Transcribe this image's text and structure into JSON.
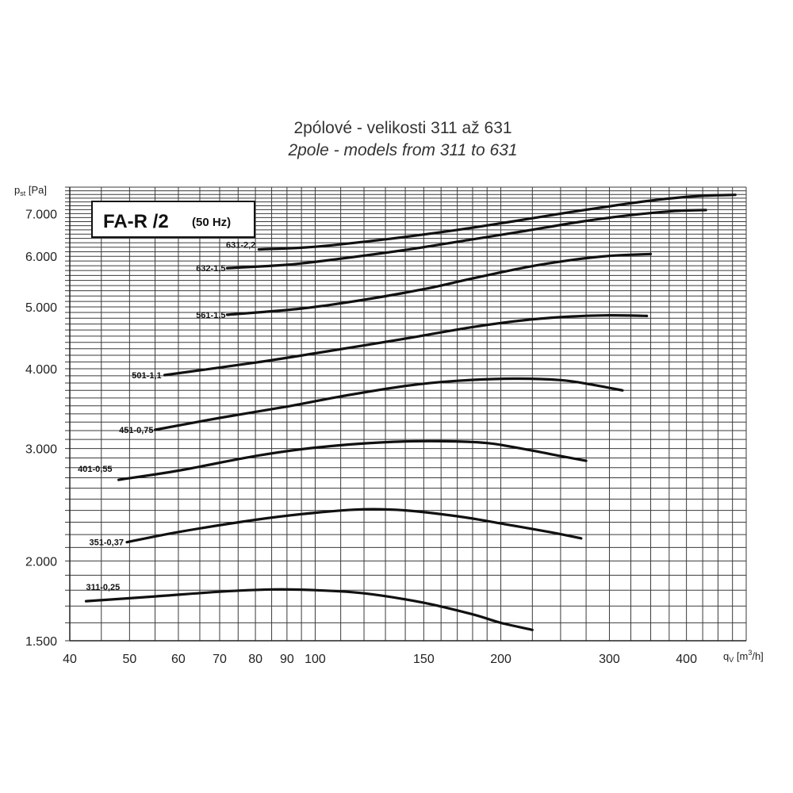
{
  "chart_data": {
    "type": "line",
    "title": "2pólové - velikosti 311 až 631",
    "subtitle": "2pole - models from 311 to 631",
    "model_box": {
      "name": "FA-R /2",
      "frequency": "(50 Hz)"
    },
    "xlabel": {
      "main": "q",
      "sub": "V",
      "unit_pre": " [m",
      "unit_sup": "3",
      "unit_post": "/h]"
    },
    "ylabel": {
      "main": "p",
      "sub": "st",
      "unit": " [Pa]"
    },
    "x_scale": "log",
    "y_scale": "log",
    "xlim": [
      40,
      500
    ],
    "ylim": [
      1500,
      7700
    ],
    "grid": true,
    "x_ticks": [
      {
        "value": 40,
        "label": "40"
      },
      {
        "value": 50,
        "label": "50"
      },
      {
        "value": 60,
        "label": "60"
      },
      {
        "value": 70,
        "label": "70"
      },
      {
        "value": 80,
        "label": "80"
      },
      {
        "value": 90,
        "label": "90"
      },
      {
        "value": 100,
        "label": "100"
      },
      {
        "value": 150,
        "label": "150"
      },
      {
        "value": 200,
        "label": "200"
      },
      {
        "value": 300,
        "label": "300"
      },
      {
        "value": 400,
        "label": "400"
      }
    ],
    "y_ticks": [
      {
        "value": 1500,
        "label": "1.500"
      },
      {
        "value": 2000,
        "label": "2.000"
      },
      {
        "value": 3000,
        "label": "3.000"
      },
      {
        "value": 4000,
        "label": "4.000"
      },
      {
        "value": 5000,
        "label": "5.000"
      },
      {
        "value": 6000,
        "label": "6.000"
      },
      {
        "value": 7000,
        "label": "7.000"
      }
    ],
    "series": [
      {
        "name": "311-0,25",
        "points": [
          [
            42.5,
            1730
          ],
          [
            55,
            1760
          ],
          [
            70,
            1790
          ],
          [
            85,
            1805
          ],
          [
            100,
            1800
          ],
          [
            120,
            1780
          ],
          [
            150,
            1720
          ],
          [
            180,
            1650
          ],
          [
            200,
            1600
          ],
          [
            225,
            1560
          ]
        ]
      },
      {
        "name": "351-0,37",
        "points": [
          [
            49.5,
            2140
          ],
          [
            60,
            2220
          ],
          [
            80,
            2320
          ],
          [
            100,
            2380
          ],
          [
            120,
            2410
          ],
          [
            140,
            2400
          ],
          [
            170,
            2350
          ],
          [
            200,
            2290
          ],
          [
            240,
            2220
          ],
          [
            270,
            2170
          ]
        ]
      },
      {
        "name": "401-0,55",
        "points": [
          [
            48,
            2680
          ],
          [
            60,
            2770
          ],
          [
            80,
            2920
          ],
          [
            100,
            3010
          ],
          [
            130,
            3070
          ],
          [
            160,
            3080
          ],
          [
            190,
            3060
          ],
          [
            220,
            2990
          ],
          [
            250,
            2920
          ],
          [
            275,
            2870
          ]
        ]
      },
      {
        "name": "451-0,75",
        "points": [
          [
            55,
            3210
          ],
          [
            70,
            3350
          ],
          [
            90,
            3490
          ],
          [
            110,
            3620
          ],
          [
            140,
            3760
          ],
          [
            170,
            3830
          ],
          [
            210,
            3860
          ],
          [
            250,
            3840
          ],
          [
            280,
            3780
          ],
          [
            315,
            3700
          ]
        ]
      },
      {
        "name": "501-1,1",
        "points": [
          [
            57,
            3910
          ],
          [
            80,
            4090
          ],
          [
            100,
            4230
          ],
          [
            140,
            4460
          ],
          [
            180,
            4650
          ],
          [
            220,
            4770
          ],
          [
            260,
            4830
          ],
          [
            300,
            4850
          ],
          [
            345,
            4840
          ]
        ]
      },
      {
        "name": "561-1,5",
        "points": [
          [
            72,
            4860
          ],
          [
            95,
            4970
          ],
          [
            120,
            5130
          ],
          [
            150,
            5330
          ],
          [
            180,
            5540
          ],
          [
            220,
            5770
          ],
          [
            260,
            5920
          ],
          [
            300,
            6010
          ],
          [
            350,
            6050
          ]
        ]
      },
      {
        "name": "632-1,5",
        "points": [
          [
            72,
            5750
          ],
          [
            90,
            5820
          ],
          [
            110,
            5950
          ],
          [
            140,
            6140
          ],
          [
            180,
            6380
          ],
          [
            220,
            6580
          ],
          [
            270,
            6800
          ],
          [
            320,
            6950
          ],
          [
            380,
            7060
          ],
          [
            430,
            7090
          ]
        ]
      },
      {
        "name": "631-2,2",
        "points": [
          [
            81,
            6150
          ],
          [
            100,
            6210
          ],
          [
            130,
            6380
          ],
          [
            170,
            6600
          ],
          [
            210,
            6810
          ],
          [
            260,
            7040
          ],
          [
            310,
            7220
          ],
          [
            360,
            7360
          ],
          [
            420,
            7460
          ],
          [
            480,
            7490
          ]
        ]
      }
    ]
  }
}
